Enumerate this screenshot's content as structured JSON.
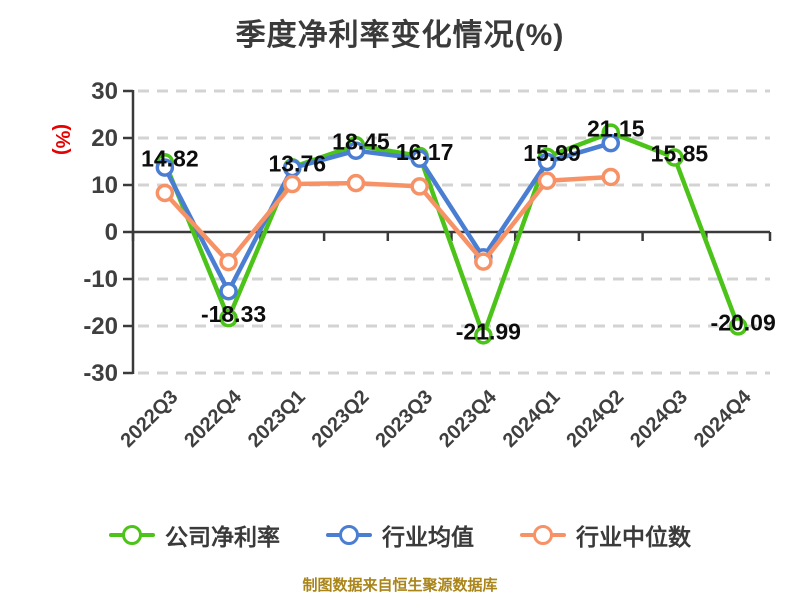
{
  "title": "季度净利率变化情况(%)",
  "y_axis_name": "(%)",
  "footer": "制图数据来自恒生聚源数据库",
  "colors": {
    "title": "#3a3a3a",
    "axis": "#3a3a3a",
    "grid": "#d3d3d3",
    "tick_label": "#3f3f3f",
    "data_label": "#0d0d0d",
    "y_axis_name": "#e60000",
    "footer": "#aa8519",
    "series": [
      "#4cc318",
      "#4a7ed2",
      "#f79166"
    ]
  },
  "legend": {
    "items": [
      {
        "label": "公司净利率"
      },
      {
        "label": "行业均值"
      },
      {
        "label": "行业中位数"
      }
    ]
  },
  "chart_data": {
    "type": "line",
    "title": "季度净利率变化情况(%)",
    "y_axis_name": "(%)",
    "categories": [
      "2022Q3",
      "2022Q4",
      "2023Q1",
      "2023Q2",
      "2023Q3",
      "2023Q4",
      "2024Q1",
      "2024Q2",
      "2024Q3",
      "2024Q4"
    ],
    "series": [
      {
        "id": "company-net-margin",
        "name": "公司净利率",
        "show_labels": true,
        "values": [
          14.82,
          -18.33,
          13.76,
          18.45,
          16.17,
          -21.99,
          15.99,
          21.15,
          15.85,
          -20.09
        ]
      },
      {
        "id": "industry-average",
        "name": "行业均值",
        "show_labels": false,
        "values": [
          13.7,
          -12.6,
          13.6,
          17.3,
          15.6,
          -5.4,
          14.9,
          18.9,
          null,
          null
        ]
      },
      {
        "id": "industry-median",
        "name": "行业中位数",
        "show_labels": false,
        "values": [
          8.3,
          -6.4,
          10.2,
          10.4,
          9.7,
          -6.3,
          10.9,
          11.7,
          null,
          null
        ]
      }
    ],
    "ylim": [
      -30,
      30
    ],
    "y_ticks": [
      30,
      20,
      10,
      0,
      -10,
      -20,
      -30
    ],
    "grid": "dashed-horizontal",
    "x_label_rotation": -45,
    "legend_position": "bottom"
  }
}
